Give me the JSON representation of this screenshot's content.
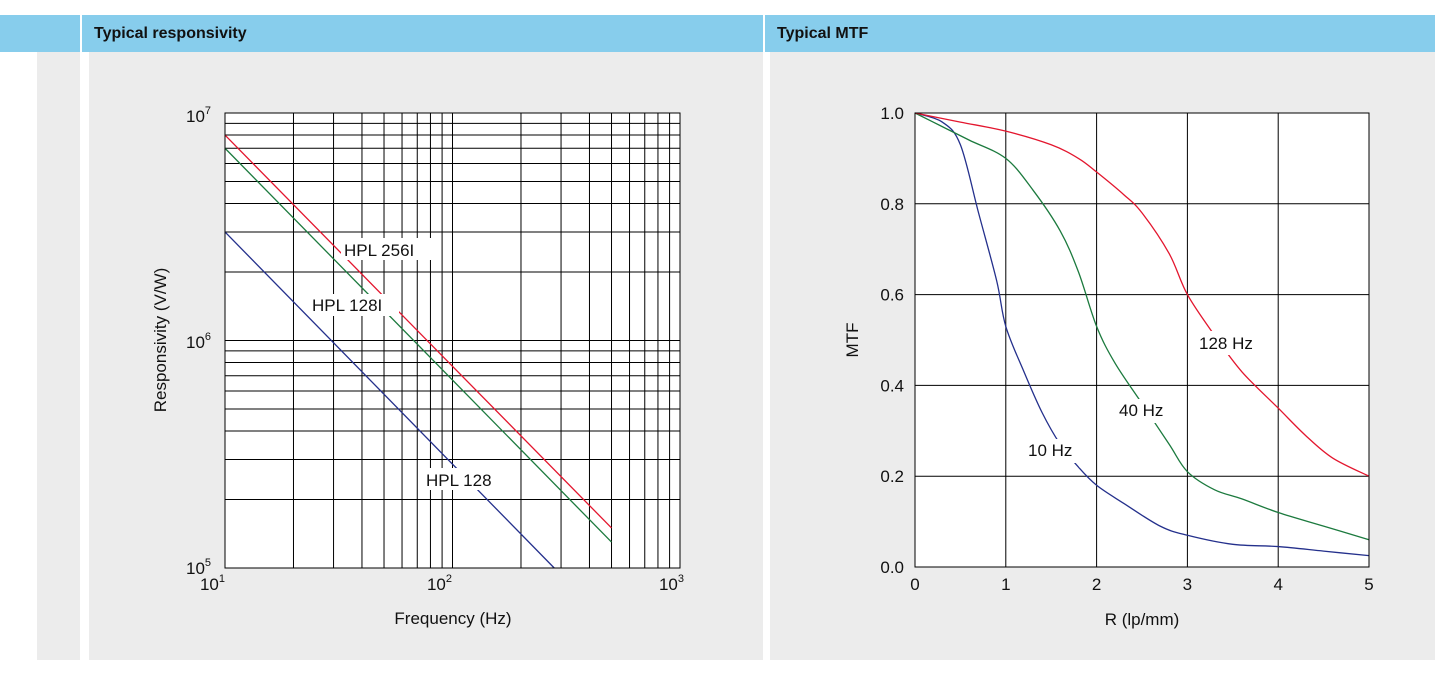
{
  "headers": {
    "left": "Typical responsivity",
    "right": "Typical MTF"
  },
  "chart_data": [
    {
      "type": "line",
      "title": "Typical responsivity",
      "xlabel": "Frequency (Hz)",
      "ylabel": "Responsivity (V/W)",
      "xscale": "log",
      "yscale": "log",
      "xlim": [
        10,
        1000
      ],
      "ylim": [
        100000,
        10000000
      ],
      "grid": true,
      "xticks": [
        {
          "base": "10",
          "exp": "1"
        },
        {
          "base": "10",
          "exp": "2"
        },
        {
          "base": "10",
          "exp": "3"
        }
      ],
      "yticks": [
        {
          "base": "10",
          "exp": "5"
        },
        {
          "base": "10",
          "exp": "6"
        },
        {
          "base": "10",
          "exp": "7"
        }
      ],
      "series": [
        {
          "name": "HPL 256I",
          "color": "#e3162e",
          "x": [
            10,
            500
          ],
          "y": [
            8000000,
            150000
          ]
        },
        {
          "name": "HPL 128I",
          "color": "#1c7a3e",
          "x": [
            10,
            500
          ],
          "y": [
            7000000,
            130000
          ]
        },
        {
          "name": "HPL 128",
          "color": "#24308c",
          "x": [
            10,
            280
          ],
          "y": [
            3000000,
            100000
          ]
        }
      ],
      "annotations": [
        "HPL 256I",
        "HPL 128I",
        "HPL 128"
      ]
    },
    {
      "type": "line",
      "title": "Typical MTF",
      "xlabel": "R (lp/mm)",
      "ylabel": "MTF",
      "xlim": [
        0,
        5
      ],
      "ylim": [
        0,
        1
      ],
      "grid": true,
      "xticks": [
        "0",
        "1",
        "2",
        "3",
        "4",
        "5"
      ],
      "yticks": [
        "0.0",
        "0.2",
        "0.4",
        "0.6",
        "0.8",
        "1.0"
      ],
      "series": [
        {
          "name": "10 Hz",
          "color": "#24308c",
          "x": [
            0,
            0.3,
            0.5,
            0.7,
            0.9,
            1.0,
            1.2,
            1.4,
            1.6,
            1.8,
            2.0,
            2.3,
            2.7,
            3.0,
            3.5,
            4.0,
            4.5,
            5.0
          ],
          "y": [
            1.0,
            0.98,
            0.93,
            0.78,
            0.63,
            0.53,
            0.43,
            0.34,
            0.27,
            0.22,
            0.18,
            0.14,
            0.09,
            0.07,
            0.05,
            0.045,
            0.035,
            0.025
          ]
        },
        {
          "name": "40 Hz",
          "color": "#1c7a3e",
          "x": [
            0,
            0.3,
            0.6,
            1.0,
            1.3,
            1.6,
            1.8,
            2.0,
            2.2,
            2.5,
            2.8,
            3.0,
            3.3,
            3.6,
            4.0,
            4.5,
            5.0
          ],
          "y": [
            1.0,
            0.97,
            0.94,
            0.9,
            0.83,
            0.74,
            0.65,
            0.53,
            0.45,
            0.36,
            0.27,
            0.21,
            0.17,
            0.15,
            0.12,
            0.09,
            0.06
          ]
        },
        {
          "name": "128 Hz",
          "color": "#e3162e",
          "x": [
            0,
            0.5,
            1.0,
            1.5,
            1.8,
            2.0,
            2.3,
            2.5,
            2.8,
            3.0,
            3.3,
            3.6,
            4.0,
            4.3,
            4.6,
            5.0
          ],
          "y": [
            1.0,
            0.98,
            0.96,
            0.93,
            0.9,
            0.87,
            0.82,
            0.78,
            0.69,
            0.6,
            0.51,
            0.43,
            0.35,
            0.29,
            0.24,
            0.2
          ]
        }
      ],
      "annotations": [
        "10 Hz",
        "40 Hz",
        "128 Hz"
      ]
    }
  ]
}
